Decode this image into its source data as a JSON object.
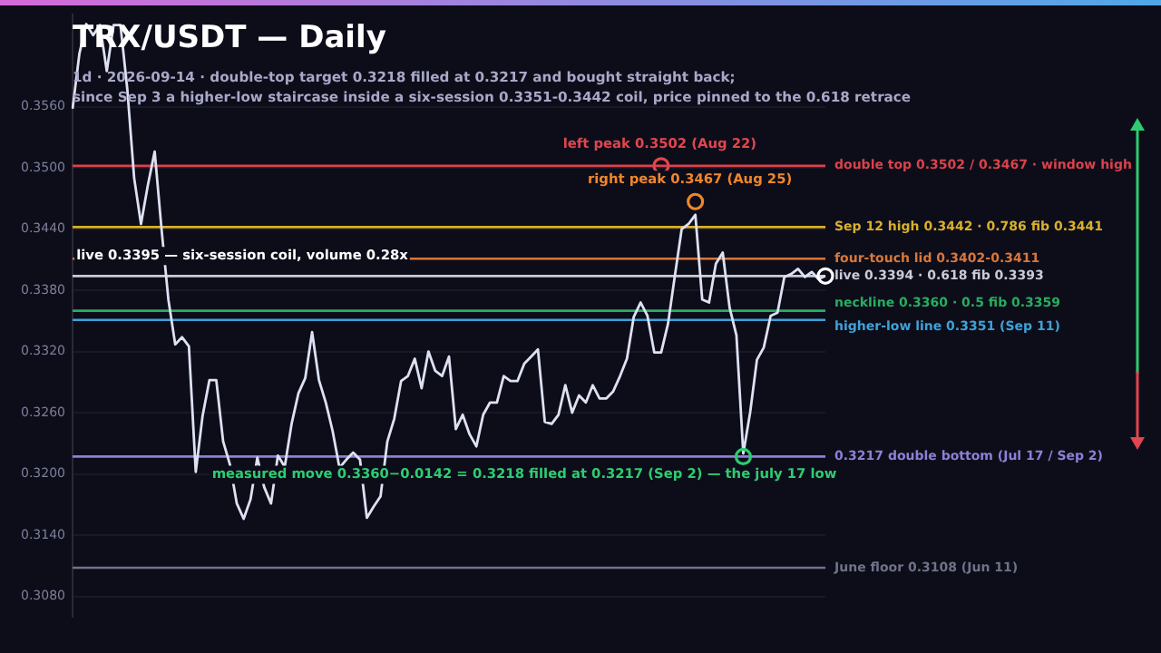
{
  "chart_data": {
    "type": "line",
    "title": "TRX/USDT — Daily",
    "subtitle": "1d · 2026-09-14 · double-top target 0.3218 filled at 0.3217 and bought straight back;\nsince Sep 3 a higher-low staircase inside a six-session 0.3351-0.3442 coil, price pinned to the 0.618 retrace",
    "categories": [
      null,
      null,
      null,
      null,
      null,
      null,
      null,
      null,
      null,
      null,
      null,
      null,
      null,
      null,
      null,
      null,
      null,
      null,
      null,
      null,
      null,
      null,
      null,
      null,
      null,
      null,
      null,
      null,
      null,
      null,
      null,
      null,
      null,
      null,
      null,
      null,
      null,
      null,
      null,
      null,
      null,
      null,
      null,
      null,
      null,
      null,
      null,
      null,
      null,
      null,
      null,
      null,
      null,
      null,
      null,
      null,
      null,
      null,
      null,
      null,
      null,
      null,
      null,
      null,
      null,
      null,
      null,
      null,
      null,
      null,
      null,
      null,
      null,
      null,
      null,
      null,
      null,
      null,
      null,
      null,
      null,
      null,
      null,
      null,
      null,
      null,
      null,
      null,
      null,
      null,
      null,
      null,
      null,
      null,
      null,
      null,
      null,
      null,
      null,
      null,
      null,
      null,
      null,
      null,
      null,
      null,
      null,
      null,
      null,
      null,
      null
    ],
    "series": [
      {
        "color": "#dde1f2",
        "marker": "none",
        "values": [
          0.3558,
          0.3612,
          0.3641,
          0.363,
          0.364,
          0.3595,
          0.364,
          0.364,
          0.3577,
          0.349,
          0.3445,
          0.3483,
          0.3516,
          0.344,
          0.3371,
          0.3327,
          0.3334,
          0.3325,
          0.3202,
          0.3257,
          0.3292,
          0.3292,
          0.3232,
          0.3209,
          0.3171,
          0.3156,
          0.3175,
          0.3216,
          0.3187,
          0.3171,
          0.3218,
          0.3207,
          0.3249,
          0.3279,
          0.3294,
          0.3339,
          0.3292,
          0.327,
          0.3242,
          0.3206,
          0.3214,
          0.3221,
          0.3214,
          0.3157,
          0.3168,
          0.3178,
          0.3232,
          0.3254,
          0.3291,
          0.3296,
          0.3313,
          0.3284,
          0.332,
          0.3301,
          0.3296,
          0.3315,
          0.3244,
          0.3258,
          0.3239,
          0.3227,
          0.3258,
          0.327,
          0.327,
          0.3296,
          0.3291,
          0.3291,
          0.3308,
          0.3315,
          0.3322,
          0.3251,
          0.3249,
          0.3258,
          0.3287,
          0.326,
          0.3277,
          0.327,
          0.3287,
          0.3274,
          0.3274,
          0.3281,
          0.3296,
          0.3313,
          0.3354,
          0.3368,
          0.3355,
          0.3319,
          0.3319,
          0.3347,
          0.3394,
          0.344,
          0.3445,
          0.3454,
          0.3371,
          0.3368,
          0.3406,
          0.3417,
          0.3363,
          0.3336,
          0.322,
          0.326,
          0.3312,
          0.3324,
          0.3355,
          0.3358,
          0.3393,
          0.3396,
          0.3401,
          0.3393,
          0.3398,
          0.3391,
          0.3394
        ]
      },
      {
        "type": "scatter",
        "color": "#e0464e",
        "marker": "circle",
        "values": [
          null,
          null,
          null,
          null,
          null,
          null,
          null,
          null,
          null,
          null,
          null,
          null,
          null,
          null,
          null,
          null,
          null,
          null,
          null,
          null,
          null,
          null,
          null,
          null,
          null,
          null,
          null,
          null,
          null,
          null,
          null,
          null,
          null,
          null,
          null,
          null,
          null,
          null,
          null,
          null,
          null,
          null,
          null,
          null,
          null,
          null,
          null,
          null,
          null,
          null,
          null,
          null,
          null,
          null,
          null,
          null,
          null,
          null,
          null,
          null,
          null,
          null,
          null,
          null,
          null,
          null,
          null,
          null,
          null,
          null,
          null,
          null,
          null,
          null,
          null,
          null,
          null,
          null,
          null,
          null,
          null,
          null,
          null,
          null,
          null,
          null,
          0.3502,
          null,
          null,
          null,
          null,
          null,
          null,
          null,
          null,
          null,
          null,
          null,
          null,
          null,
          null,
          null,
          null,
          null,
          null,
          null,
          null,
          null,
          null,
          null,
          null
        ]
      },
      {
        "type": "scatter",
        "color": "#f0862a",
        "marker": "circle",
        "values": [
          null,
          null,
          null,
          null,
          null,
          null,
          null,
          null,
          null,
          null,
          null,
          null,
          null,
          null,
          null,
          null,
          null,
          null,
          null,
          null,
          null,
          null,
          null,
          null,
          null,
          null,
          null,
          null,
          null,
          null,
          null,
          null,
          null,
          null,
          null,
          null,
          null,
          null,
          null,
          null,
          null,
          null,
          null,
          null,
          null,
          null,
          null,
          null,
          null,
          null,
          null,
          null,
          null,
          null,
          null,
          null,
          null,
          null,
          null,
          null,
          null,
          null,
          null,
          null,
          null,
          null,
          null,
          null,
          null,
          null,
          null,
          null,
          null,
          null,
          null,
          null,
          null,
          null,
          null,
          null,
          null,
          null,
          null,
          null,
          null,
          null,
          null,
          null,
          null,
          null,
          null,
          0.3467,
          null,
          null,
          null,
          null,
          null,
          null,
          null,
          null,
          null,
          null,
          null,
          null,
          null,
          null,
          null,
          null,
          null,
          null,
          null
        ]
      },
      {
        "type": "scatter",
        "color": "#2ecc71",
        "marker": "circle",
        "values": [
          null,
          null,
          null,
          null,
          null,
          null,
          null,
          null,
          null,
          null,
          null,
          null,
          null,
          null,
          null,
          null,
          null,
          null,
          null,
          null,
          null,
          null,
          null,
          null,
          null,
          null,
          null,
          null,
          null,
          null,
          null,
          null,
          null,
          null,
          null,
          null,
          null,
          null,
          null,
          null,
          null,
          null,
          null,
          null,
          null,
          null,
          null,
          null,
          null,
          null,
          null,
          null,
          null,
          null,
          null,
          null,
          null,
          null,
          null,
          null,
          null,
          null,
          null,
          null,
          null,
          null,
          null,
          null,
          null,
          null,
          null,
          null,
          null,
          null,
          null,
          null,
          null,
          null,
          null,
          null,
          null,
          null,
          null,
          null,
          null,
          null,
          null,
          null,
          null,
          null,
          null,
          null,
          null,
          null,
          null,
          null,
          null,
          null,
          0.3217,
          null,
          null,
          null,
          null,
          null,
          null,
          null,
          null,
          null,
          null,
          null,
          null
        ]
      },
      {
        "type": "scatter",
        "color": "#ffffff",
        "marker": "circle",
        "values": [
          null,
          null,
          null,
          null,
          null,
          null,
          null,
          null,
          null,
          null,
          null,
          null,
          null,
          null,
          null,
          null,
          null,
          null,
          null,
          null,
          null,
          null,
          null,
          null,
          null,
          null,
          null,
          null,
          null,
          null,
          null,
          null,
          null,
          null,
          null,
          null,
          null,
          null,
          null,
          null,
          null,
          null,
          null,
          null,
          null,
          null,
          null,
          null,
          null,
          null,
          null,
          null,
          null,
          null,
          null,
          null,
          null,
          null,
          null,
          null,
          null,
          null,
          null,
          null,
          null,
          null,
          null,
          null,
          null,
          null,
          null,
          null,
          null,
          null,
          null,
          null,
          null,
          null,
          null,
          null,
          null,
          null,
          null,
          null,
          null,
          null,
          null,
          null,
          null,
          null,
          null,
          null,
          null,
          null,
          null,
          null,
          null,
          null,
          null,
          null,
          null,
          null,
          null,
          null,
          null,
          null,
          null,
          null,
          null,
          null,
          0.3394
        ]
      }
    ],
    "ylim": [
      0.306,
      0.365
    ],
    "yticks": [
      {
        "value": 0.308,
        "label": "0.3080"
      },
      {
        "value": 0.314,
        "label": "0.3140"
      },
      {
        "value": 0.32,
        "label": "0.3200"
      },
      {
        "value": 0.326,
        "label": "0.3260"
      },
      {
        "value": 0.332,
        "label": "0.3320"
      },
      {
        "value": 0.338,
        "label": "0.3380"
      },
      {
        "value": 0.344,
        "label": "0.3440"
      },
      {
        "value": 0.35,
        "label": "0.3500"
      },
      {
        "value": 0.356,
        "label": "0.3560"
      }
    ],
    "grid": "y",
    "legend": false,
    "tick_labels": "y",
    "ref_lines": [
      {
        "axis": "y",
        "value": 0.3502,
        "label": "double top 0.3502 / 0.3467 · window high",
        "color": "#d9434b"
      },
      {
        "axis": "y",
        "value": 0.3442,
        "label": "Sep 12 high 0.3442 · 0.786 fib 0.3441",
        "color": "#d9b12c"
      },
      {
        "axis": "y",
        "value": 0.3411,
        "label": "four-touch lid 0.3402-0.3411",
        "color": "#d9773a"
      },
      {
        "axis": "y",
        "value": 0.3394,
        "label": "live 0.3394 · 0.618 fib 0.3393",
        "color": "#c9ccd6"
      },
      {
        "axis": "y",
        "value": 0.336,
        "label": "neckline 0.3360 · 0.5 fib 0.3359",
        "color": "#27ae60"
      },
      {
        "axis": "y",
        "value": 0.3351,
        "label": "higher-low line 0.3351 (Sep 11)",
        "color": "#3ea2d8"
      },
      {
        "axis": "y",
        "value": 0.3217,
        "label": "0.3217 double bottom (Jul 17 / Sep 2)",
        "color": "#8e7fd6"
      },
      {
        "axis": "y",
        "value": 0.3108,
        "label": "June floor 0.3108 (Jun 11)",
        "color": "#6f7388"
      }
    ],
    "annotations": [
      "left peak 0.3502 (Aug 22)",
      "right peak 0.3467 (Aug 25)",
      "live 0.3395 — six-session coil, volume 0.28x",
      "measured move 0.3360−0.0142 = 0.3218 filled at 0.3217 (Sep 2) — the july 17 low"
    ]
  }
}
